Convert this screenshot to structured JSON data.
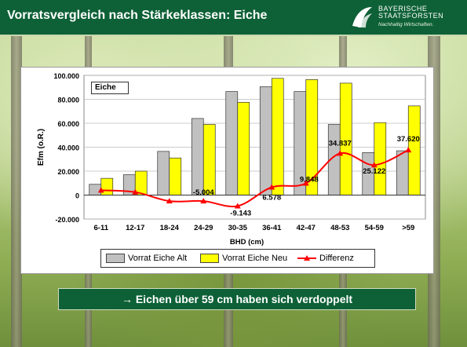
{
  "header": {
    "title": "Vorratsvergleich nach Stärkeklassen: Eiche",
    "logo_line1": "BAYERISCHE",
    "logo_line2": "STAATSFORSTEN",
    "logo_tagline": "Nachhaltig Wirtschaften."
  },
  "banner": {
    "text": "→ Eichen über 59 cm haben sich verdoppelt"
  },
  "colors": {
    "header_green": "#0e6137",
    "bar_alt": "#c0c0c0",
    "bar_neu": "#ffff00",
    "line": "#ff0000"
  },
  "chart_data": {
    "type": "bar",
    "inbox_label": "Eiche",
    "xlabel": "BHD (cm)",
    "ylabel": "Efm (o.R.)",
    "ylim": [
      -20000,
      100000
    ],
    "yticks": [
      "-20.000",
      "0",
      "20.000",
      "40.000",
      "60.000",
      "80.000",
      "100.000"
    ],
    "ytick_values": [
      -20000,
      0,
      20000,
      40000,
      60000,
      80000,
      100000
    ],
    "grid": true,
    "legend_position": "bottom",
    "categories": [
      "6-11",
      "12-17",
      "18-24",
      "24-29",
      "30-35",
      "36-41",
      "42-47",
      "48-53",
      "54-59",
      ">59"
    ],
    "series": [
      {
        "name": "Vorrat Eiche Alt",
        "kind": "bar",
        "values": [
          9000,
          17000,
          36500,
          64000,
          86500,
          90500,
          86500,
          59000,
          35500,
          37000
        ]
      },
      {
        "name": "Vorrat Eiche Neu",
        "kind": "bar",
        "values": [
          14000,
          20000,
          31000,
          59000,
          77500,
          97500,
          96500,
          93500,
          60500,
          74500
        ]
      },
      {
        "name": "Differenz",
        "kind": "line",
        "values": [
          4000,
          2500,
          -5000,
          -5004,
          -9143,
          6578,
          9848,
          34837,
          25122,
          37620
        ]
      }
    ],
    "data_labels": [
      {
        "index": 3,
        "text": "-5.004"
      },
      {
        "index": 4,
        "text": "-9.143"
      },
      {
        "index": 5,
        "text": "6.578"
      },
      {
        "index": 6,
        "text": "9.848"
      },
      {
        "index": 7,
        "text": "34.837"
      },
      {
        "index": 8,
        "text": "25.122"
      },
      {
        "index": 9,
        "text": "37.620"
      }
    ]
  }
}
